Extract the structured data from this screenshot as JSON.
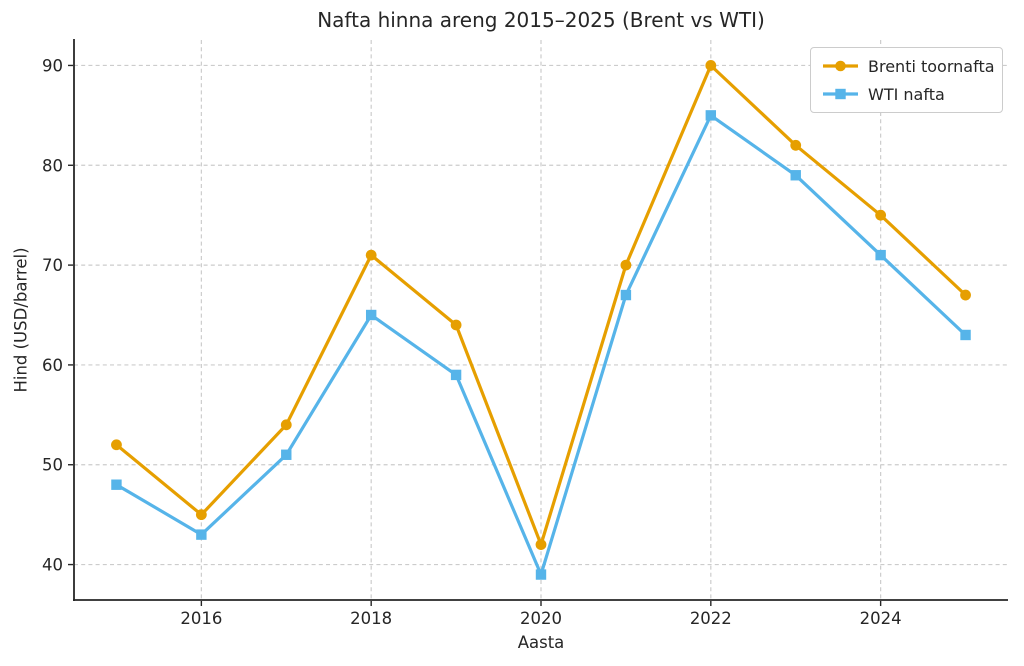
{
  "chart_data": {
    "type": "line",
    "title": "Nafta hinna areng 2015–2025 (Brent vs WTI)",
    "xlabel": "Aasta",
    "ylabel": "Hind (USD/barrel)",
    "x": [
      2015,
      2016,
      2017,
      2018,
      2019,
      2020,
      2021,
      2022,
      2023,
      2024,
      2025
    ],
    "series": [
      {
        "name": "Brenti toornafta",
        "color": "#E69F00",
        "marker": "circle",
        "values": [
          52,
          45,
          54,
          71,
          64,
          42,
          70,
          90,
          82,
          75,
          67
        ]
      },
      {
        "name": "WTI nafta",
        "color": "#56B4E9",
        "marker": "square",
        "values": [
          48,
          43,
          51,
          65,
          59,
          39,
          67,
          85,
          79,
          71,
          63
        ]
      }
    ],
    "xticks": [
      2016,
      2018,
      2020,
      2022,
      2024
    ],
    "yticks": [
      40,
      50,
      60,
      70,
      80,
      90
    ],
    "xlim": [
      2014.5,
      2025.5
    ],
    "ylim": [
      36.45,
      92.55
    ],
    "grid": true,
    "legend_position": "top-right",
    "colors": {
      "grid": "#cccccc",
      "spine": "#262626",
      "text": "#262626",
      "background": "#ffffff",
      "legend_border": "#cccccc"
    }
  }
}
